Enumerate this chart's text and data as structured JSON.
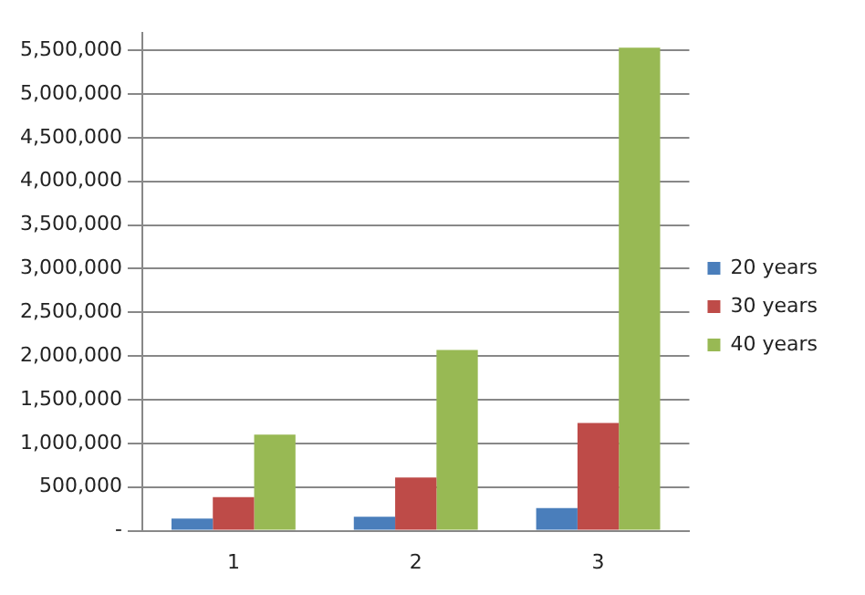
{
  "chart_data": {
    "type": "bar",
    "categories": [
      "1",
      "2",
      "3"
    ],
    "series": [
      {
        "name": "20 years",
        "color": "#4a7ebb",
        "values": [
          140000,
          160000,
          260000
        ]
      },
      {
        "name": "30 years",
        "color": "#be4b48",
        "values": [
          385000,
          610000,
          1235000
        ]
      },
      {
        "name": "40 years",
        "color": "#98b954",
        "values": [
          1100000,
          2070000,
          5530000
        ]
      }
    ],
    "ylim": [
      0,
      5700000
    ],
    "yticks": [
      {
        "value": 0,
        "label": "-"
      },
      {
        "value": 500000,
        "label": "500,000"
      },
      {
        "value": 1000000,
        "label": "1,000,000"
      },
      {
        "value": 1500000,
        "label": "1,500,000"
      },
      {
        "value": 2000000,
        "label": "2,000,000"
      },
      {
        "value": 2500000,
        "label": "2,500,000"
      },
      {
        "value": 3000000,
        "label": "3,000,000"
      },
      {
        "value": 3500000,
        "label": "3,500,000"
      },
      {
        "value": 4000000,
        "label": "4,000,000"
      },
      {
        "value": 4500000,
        "label": "4,500,000"
      },
      {
        "value": 5000000,
        "label": "5,000,000"
      },
      {
        "value": 5500000,
        "label": "5,500,000"
      }
    ],
    "grid": "y",
    "legend": "right"
  }
}
